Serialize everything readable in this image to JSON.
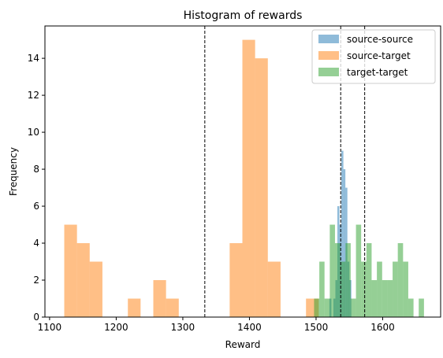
{
  "chart_data": {
    "type": "histogram",
    "title": "Histogram of rewards",
    "xlabel": "Reward",
    "ylabel": "Frequency",
    "xlim": [
      1093,
      1687
    ],
    "ylim": [
      0,
      15.75
    ],
    "xticks": [
      1100,
      1200,
      1300,
      1400,
      1500,
      1600
    ],
    "yticks": [
      0,
      2,
      4,
      6,
      8,
      10,
      12,
      14
    ],
    "grid": false,
    "legend_position": "top-right",
    "colors": {
      "source-source": "#1f77b4",
      "source-target": "#ff7f0e",
      "target-target": "#2ca02c",
      "vline": "#000000"
    },
    "alpha": 0.5,
    "series": [
      {
        "name": "source-source",
        "bins": [
          [
            1520.0,
            1523.0,
            1
          ],
          [
            1526.0,
            1529.0,
            1
          ],
          [
            1529.0,
            1532.0,
            2
          ],
          [
            1532.0,
            1535.0,
            6
          ],
          [
            1535.0,
            1538.0,
            5
          ],
          [
            1538.0,
            1541.0,
            9
          ],
          [
            1541.0,
            1544.0,
            8
          ],
          [
            1544.0,
            1547.0,
            7
          ],
          [
            1547.0,
            1550.0,
            3
          ],
          [
            1550.0,
            1553.0,
            2
          ]
        ]
      },
      {
        "name": "source-target",
        "bins": [
          [
            1122.0,
            1141.1,
            5
          ],
          [
            1141.1,
            1160.2,
            4
          ],
          [
            1160.2,
            1179.3,
            3
          ],
          [
            1217.5,
            1236.6,
            1
          ],
          [
            1255.7,
            1274.8,
            2
          ],
          [
            1274.8,
            1293.9,
            1
          ],
          [
            1370.3,
            1389.4,
            4
          ],
          [
            1389.4,
            1408.5,
            15
          ],
          [
            1408.5,
            1427.6,
            14
          ],
          [
            1427.6,
            1446.7,
            3
          ],
          [
            1484.9,
            1504.0,
            1
          ]
        ]
      },
      {
        "name": "target-target",
        "bins": [
          [
            1497.0,
            1504.9,
            1
          ],
          [
            1504.9,
            1512.7,
            3
          ],
          [
            1512.7,
            1520.6,
            1
          ],
          [
            1520.6,
            1528.4,
            5
          ],
          [
            1528.4,
            1536.3,
            4
          ],
          [
            1536.3,
            1544.2,
            3
          ],
          [
            1544.2,
            1552.0,
            4
          ],
          [
            1552.0,
            1559.9,
            1
          ],
          [
            1559.9,
            1567.7,
            5
          ],
          [
            1567.7,
            1575.6,
            3
          ],
          [
            1575.6,
            1583.4,
            4
          ],
          [
            1583.4,
            1591.3,
            2
          ],
          [
            1591.3,
            1599.2,
            3
          ],
          [
            1599.2,
            1607.0,
            2
          ],
          [
            1607.0,
            1614.9,
            2
          ],
          [
            1614.9,
            1622.7,
            3
          ],
          [
            1622.7,
            1630.6,
            4
          ],
          [
            1630.6,
            1638.4,
            3
          ],
          [
            1638.4,
            1646.3,
            1
          ],
          [
            1654.1,
            1662.0,
            1
          ]
        ]
      }
    ],
    "vlines": [
      1333,
      1537,
      1573
    ]
  }
}
